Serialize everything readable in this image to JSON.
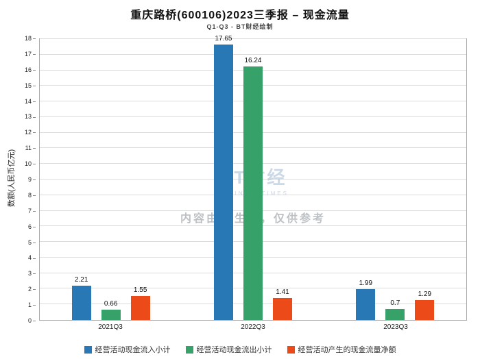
{
  "chart": {
    "title": "重庆路桥(600106)2023三季报 – 现金流量",
    "subtitle": "Q1-Q3 - BT财经绘制",
    "ylabel": "数额(人民币亿元)",
    "watermark_logo": "BT财经",
    "watermark_sub": "BUSINESSTIMES",
    "watermark_note": "内容由AI生成，仅供参考"
  },
  "chart_data": {
    "type": "bar",
    "title": "重庆路桥(600106)2023三季报 – 现金流量",
    "subtitle": "Q1-Q3 - BT财经绘制",
    "xlabel": "",
    "ylabel": "数额(人民币亿元)",
    "categories": [
      "2021Q3",
      "2022Q3",
      "2023Q3"
    ],
    "series": [
      {
        "name": "经营活动现金流入小计",
        "color": "#2878b5",
        "values": [
          2.21,
          17.65,
          1.99
        ]
      },
      {
        "name": "经营活动现金流出小计",
        "color": "#36a169",
        "values": [
          0.66,
          16.24,
          0.7
        ]
      },
      {
        "name": "经营活动产生的现金流量净额",
        "color": "#ec4a19",
        "values": [
          1.55,
          1.41,
          1.29
        ]
      }
    ],
    "ylim": [
      0,
      18
    ],
    "ytick_step": 1,
    "grid": true,
    "legend_position": "bottom"
  }
}
